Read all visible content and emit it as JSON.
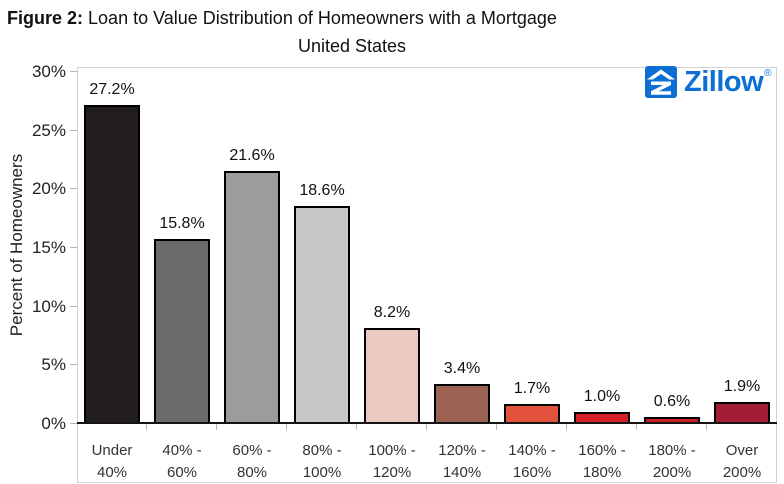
{
  "title": {
    "prefix": "Figure 2:",
    "main": "Loan to Value Distribution of Homeowners with a Mortgage",
    "subtitle": "United States"
  },
  "logo": {
    "wordmark": "Zillow",
    "registered": "®",
    "brand_color": "#0d6fd4"
  },
  "chart_data": {
    "type": "bar",
    "title": "Figure 2: Loan to Value Distribution of Homeowners with a Mortgage",
    "subtitle": "United States",
    "ylabel": "Percent of Homeowners",
    "xlabel": "",
    "ylim": [
      0,
      30
    ],
    "ytick_interval": 5,
    "grid": false,
    "legend": false,
    "categories": [
      "Under 40%",
      "40% - 60%",
      "60% - 80%",
      "80% - 100%",
      "100% - 120%",
      "120% - 140%",
      "140% - 160%",
      "160% - 180%",
      "180% - 200%",
      "Over 200%"
    ],
    "category_lines": [
      [
        "Under",
        "40%"
      ],
      [
        "40% -",
        "60%"
      ],
      [
        "60% -",
        "80%"
      ],
      [
        "80% -",
        "100%"
      ],
      [
        "100% -",
        "120%"
      ],
      [
        "120% -",
        "140%"
      ],
      [
        "140% -",
        "160%"
      ],
      [
        "160% -",
        "180%"
      ],
      [
        "180% -",
        "200%"
      ],
      [
        "Over",
        "200%"
      ]
    ],
    "values": [
      27.2,
      15.8,
      21.6,
      18.6,
      8.2,
      3.4,
      1.7,
      1.0,
      0.6,
      1.9
    ],
    "value_labels": [
      "27.2%",
      "15.8%",
      "21.6%",
      "18.6%",
      "8.2%",
      "3.4%",
      "1.7%",
      "1.0%",
      "0.6%",
      "1.9%"
    ],
    "bar_colors": [
      "#211d1e",
      "#6b6b6b",
      "#9d9b9b",
      "#c9c7c7",
      "#ecc9c2",
      "#9b6354",
      "#e2523c",
      "#d42127",
      "#cb2026",
      "#a21d33"
    ],
    "yticks": [
      {
        "label": "0%",
        "value": 0
      },
      {
        "label": "5%",
        "value": 5
      },
      {
        "label": "10%",
        "value": 10
      },
      {
        "label": "15%",
        "value": 15
      },
      {
        "label": "20%",
        "value": 20
      },
      {
        "label": "25%",
        "value": 25
      },
      {
        "label": "30%",
        "value": 30
      }
    ]
  }
}
